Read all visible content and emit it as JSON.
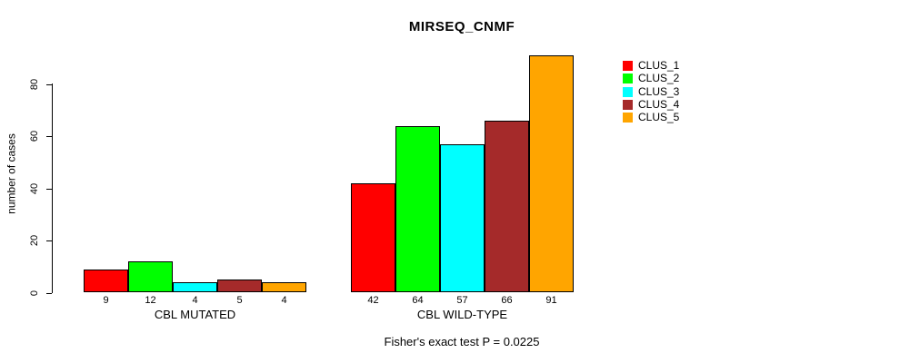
{
  "chart_data": {
    "type": "bar",
    "title": "MIRSEQ_CNMF",
    "ylabel": "number of cases",
    "xlabel": "",
    "ylim": [
      0,
      80
    ],
    "yticks": [
      0,
      20,
      40,
      60,
      80
    ],
    "grid": false,
    "legend_position": "right-outside",
    "series": [
      {
        "name": "CLUS_1",
        "color": "#FF0000"
      },
      {
        "name": "CLUS_2",
        "color": "#00FF00"
      },
      {
        "name": "CLUS_3",
        "color": "#00FFFF"
      },
      {
        "name": "CLUS_4",
        "color": "#A52A2A"
      },
      {
        "name": "CLUS_5",
        "color": "#FFA500"
      }
    ],
    "groups": [
      {
        "label": "CBL MUTATED",
        "values": [
          9,
          12,
          4,
          5,
          4
        ]
      },
      {
        "label": "CBL WILD-TYPE",
        "values": [
          42,
          64,
          57,
          66,
          91
        ]
      }
    ],
    "annotation": "Fisher's exact test P = 0.0225"
  }
}
